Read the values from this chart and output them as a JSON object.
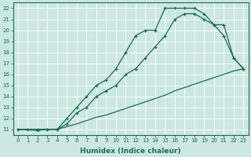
{
  "bg_color": "#cce8e0",
  "grid_color": "#ffffff",
  "line_color": "#1a6b5a",
  "marker_style": "+",
  "marker_size": 3.5,
  "marker_lw": 0.9,
  "line_width": 0.9,
  "xlabel": "Humidex (Indice chaleur)",
  "xlabel_fontsize": 6.5,
  "xlabel_fontweight": "bold",
  "tick_fontsize": 5.0,
  "xlim": [
    -0.5,
    23.5
  ],
  "ylim": [
    10.5,
    22.5
  ],
  "xticks": [
    0,
    1,
    2,
    3,
    4,
    5,
    6,
    7,
    8,
    9,
    10,
    11,
    12,
    13,
    14,
    15,
    16,
    17,
    18,
    19,
    20,
    21,
    22,
    23
  ],
  "yticks": [
    11,
    12,
    13,
    14,
    15,
    16,
    17,
    18,
    19,
    20,
    21,
    22
  ],
  "line1_x": [
    0,
    1,
    2,
    3,
    4,
    5,
    6,
    7,
    8,
    9,
    10,
    11,
    12,
    13,
    14,
    15,
    16,
    17,
    18,
    19,
    20,
    21,
    22,
    23
  ],
  "line1_y": [
    11,
    11,
    11,
    11,
    11,
    12,
    13,
    14,
    15,
    15.5,
    16.5,
    18,
    19.5,
    20,
    20,
    22,
    22,
    22,
    22,
    21.5,
    20.5,
    19.5,
    17.5,
    16.5
  ],
  "line2_x": [
    0,
    2,
    3,
    4,
    5,
    6,
    7,
    8,
    9,
    10,
    11,
    12,
    13,
    14,
    15,
    16,
    17,
    18,
    19,
    20,
    21,
    22,
    23
  ],
  "line2_y": [
    11,
    10.9,
    11,
    11,
    11.5,
    12.5,
    13.0,
    14.0,
    14.5,
    15.0,
    16.0,
    16.5,
    17.5,
    18.5,
    19.5,
    21.0,
    21.5,
    21.5,
    21.0,
    20.5,
    20.5,
    17.5,
    16.5
  ],
  "line3_x": [
    0,
    1,
    2,
    3,
    4,
    5,
    6,
    7,
    8,
    9,
    10,
    11,
    12,
    13,
    14,
    15,
    16,
    17,
    18,
    19,
    20,
    21,
    22,
    23
  ],
  "line3_y": [
    11,
    11,
    11,
    11,
    11,
    11.25,
    11.5,
    11.8,
    12.1,
    12.3,
    12.6,
    12.9,
    13.2,
    13.5,
    13.8,
    14.1,
    14.5,
    14.8,
    15.1,
    15.4,
    15.7,
    16.0,
    16.3,
    16.5
  ]
}
